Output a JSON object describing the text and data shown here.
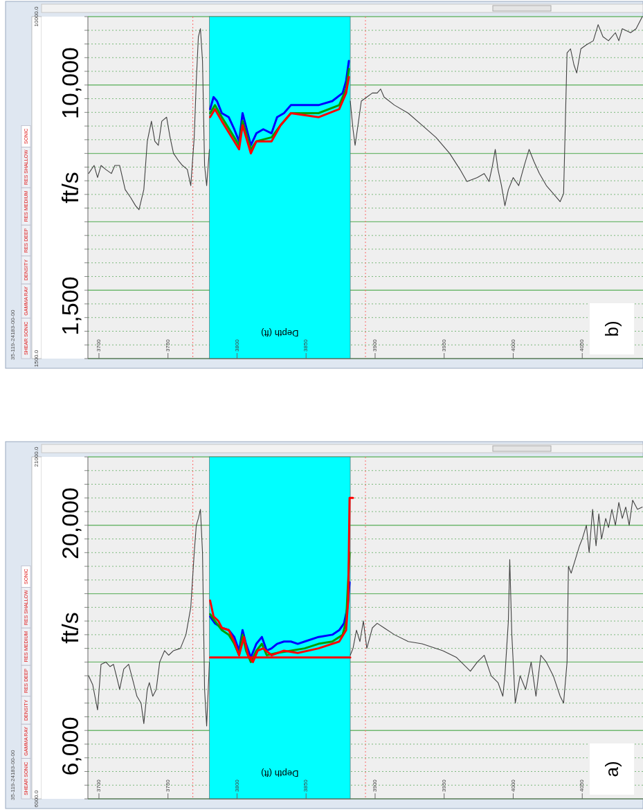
{
  "chart_data": [
    {
      "type": "line",
      "title": "b)",
      "xlabel": "Depth (ft)",
      "ylabel": "ft/s",
      "annotations": [
        "10,000",
        "1,500",
        "35-119-24183-00-00",
        "SHEAR SONIC",
        "GAMMA RAY",
        "DENSITY",
        "RES DEEP",
        "RES MEDIUM",
        "RES SHALLOW",
        "SONIC"
      ],
      "xlim": [
        3692,
        4094
      ],
      "ylim": [
        1500,
        10000
      ],
      "xticks": [
        3700,
        3750,
        3800,
        3850,
        3900,
        3950,
        4000,
        4050
      ],
      "yticks": [
        {
          "value": 1500,
          "label": "1500.0"
        },
        {
          "value": 1840,
          "label": null
        },
        {
          "value": 2180,
          "label": null
        },
        {
          "value": 2520,
          "label": null
        },
        {
          "value": 2860,
          "label": null
        },
        {
          "value": 3200,
          "label": null
        },
        {
          "value": 3540,
          "label": null
        },
        {
          "value": 3880,
          "label": null
        },
        {
          "value": 4220,
          "label": null
        },
        {
          "value": 4560,
          "label": null
        },
        {
          "value": 4900,
          "label": null
        },
        {
          "value": 5240,
          "label": null
        },
        {
          "value": 5580,
          "label": null
        },
        {
          "value": 5920,
          "label": null
        },
        {
          "value": 6260,
          "label": null
        },
        {
          "value": 6600,
          "label": null
        },
        {
          "value": 6940,
          "label": null
        },
        {
          "value": 7280,
          "label": null
        },
        {
          "value": 7620,
          "label": null
        },
        {
          "value": 7960,
          "label": null
        },
        {
          "value": 8300,
          "label": null
        },
        {
          "value": 8640,
          "label": null
        },
        {
          "value": 8980,
          "label": null
        },
        {
          "value": 9320,
          "label": null
        },
        {
          "value": 9660,
          "label": null
        },
        {
          "value": 10000,
          "label": "10000.0"
        }
      ],
      "grid": "y",
      "bands": [
        {
          "axis": "x",
          "from": 3780,
          "to": 3882,
          "color": "#00ffff"
        }
      ],
      "ref_lines": [
        {
          "axis": "x",
          "value": 3768,
          "color": "#ff6666",
          "line_style": "dotted"
        },
        {
          "axis": "x",
          "value": 3893,
          "color": "#ff6666",
          "line_style": "dotted"
        }
      ],
      "series": [
        {
          "color": "#404040",
          "x": [
            3692.5,
            3696.5,
            3699,
            3701.5,
            3705,
            3709,
            3711.5,
            3715,
            3719,
            3723,
            3726.5,
            3729,
            3732.5,
            3735,
            3738,
            3740.5,
            3743,
            3745.5,
            3749,
            3751.5,
            3754,
            3758,
            3760.5,
            3764,
            3766.5,
            3769,
            3770.5,
            3772,
            3773.5,
            3775,
            3776.5,
            3778,
            3780
          ],
          "values": [
            6100,
            6300,
            6000,
            6300,
            6200,
            6100,
            6300,
            6300,
            5700,
            5500,
            5300,
            5200,
            5700,
            6900,
            7400,
            6900,
            6800,
            7400,
            7500,
            7000,
            6600,
            6400,
            6300,
            6200,
            5800,
            7000,
            8400,
            9500,
            9700,
            8900,
            6300,
            5800,
            6700
          ]
        },
        {
          "color": "#404040",
          "x": [
            3882,
            3884,
            3885.5,
            3888,
            3890,
            3894,
            3898,
            3901.5,
            3904,
            3906.5,
            3914,
            3924,
            3934,
            3944,
            3954,
            3961.5,
            3966.5,
            3974,
            3979,
            3982.5,
            3985,
            3987,
            3989,
            3991.5,
            3994,
            3996.5,
            4000,
            4004,
            4008,
            4011.5,
            4015,
            4019,
            4024,
            4029,
            4034,
            4036.5,
            4039,
            4041.5,
            4044,
            4046,
            4049,
            4053,
            4058,
            4061.5,
            4065,
            4069,
            4074,
            4076.5,
            4079,
            4085,
            4089,
            4093.5
          ],
          "values": [
            7900,
            7200,
            6800,
            7400,
            7900,
            8000,
            8100,
            8100,
            8200,
            8000,
            7800,
            7600,
            7300,
            7000,
            6600,
            6200,
            5900,
            6000,
            6100,
            5900,
            6300,
            6700,
            6200,
            5800,
            5300,
            5700,
            6000,
            5800,
            6300,
            6700,
            6400,
            6100,
            5800,
            5600,
            5400,
            5600,
            9100,
            9200,
            8800,
            8600,
            9200,
            9300,
            9400,
            9800,
            9500,
            9400,
            9600,
            9400,
            9700,
            9600,
            9700,
            10000
          ]
        },
        {
          "color": "#0000ff",
          "x": [
            3780.5,
            3783,
            3785.5,
            3789,
            3794,
            3798,
            3801.5,
            3804,
            3807,
            3810,
            3814,
            3819,
            3825,
            3829,
            3834,
            3839,
            3849,
            3859,
            3869,
            3876.5,
            3879,
            3881
          ],
          "values": [
            7700,
            8000,
            7900,
            7600,
            7500,
            7200,
            6900,
            7600,
            7200,
            6800,
            7100,
            7200,
            7100,
            7500,
            7600,
            7800,
            7800,
            7800,
            7900,
            8100,
            8400,
            8900
          ]
        },
        {
          "color": "#00a000",
          "x": [
            3780.5,
            3784,
            3789,
            3798,
            3801.5,
            3804,
            3810,
            3814,
            3825,
            3831.5,
            3839,
            3859,
            3874,
            3879,
            3881
          ],
          "values": [
            7600,
            7800,
            7500,
            7000,
            6800,
            7400,
            6700,
            6900,
            7000,
            7300,
            7600,
            7600,
            7800,
            8200,
            8700
          ]
        },
        {
          "color": "#ff0000",
          "x": [
            3780.5,
            3784,
            3789,
            3798,
            3801.5,
            3804,
            3810,
            3814,
            3825,
            3831.5,
            3839,
            3859,
            3874,
            3879,
            3881
          ],
          "values": [
            7500,
            7700,
            7400,
            6900,
            6700,
            7300,
            6600,
            6900,
            6900,
            7300,
            7600,
            7500,
            7700,
            8100,
            8500
          ]
        }
      ]
    },
    {
      "type": "line",
      "title": "a)",
      "xlabel": "Depth (ft)",
      "ylabel": "ft/s",
      "annotations": [
        "20,000",
        "6,000",
        "35-119-24183-00-00",
        "SHEAR SONIC",
        "GAMMA RAY",
        "DENSITY",
        "RES DEEP",
        "RES MEDIUM",
        "RES SHALLOW",
        "SONIC"
      ],
      "xlim": [
        3692,
        4094
      ],
      "ylim": [
        6000,
        21000
      ],
      "xticks": [
        3700,
        3750,
        3800,
        3850,
        3900,
        3950,
        4000,
        4050
      ],
      "yticks": [
        {
          "value": 6000,
          "label": "6000.0"
        },
        {
          "value": 6600,
          "label": null
        },
        {
          "value": 7200,
          "label": null
        },
        {
          "value": 7800,
          "label": null
        },
        {
          "value": 8400,
          "label": null
        },
        {
          "value": 9000,
          "label": null
        },
        {
          "value": 9600,
          "label": null
        },
        {
          "value": 10200,
          "label": null
        },
        {
          "value": 10800,
          "label": null
        },
        {
          "value": 11400,
          "label": null
        },
        {
          "value": 12000,
          "label": null
        },
        {
          "value": 12600,
          "label": null
        },
        {
          "value": 13200,
          "label": null
        },
        {
          "value": 13800,
          "label": null
        },
        {
          "value": 14400,
          "label": null
        },
        {
          "value": 15000,
          "label": null
        },
        {
          "value": 15600,
          "label": null
        },
        {
          "value": 16200,
          "label": null
        },
        {
          "value": 16800,
          "label": null
        },
        {
          "value": 17400,
          "label": null
        },
        {
          "value": 18000,
          "label": null
        },
        {
          "value": 18600,
          "label": null
        },
        {
          "value": 19200,
          "label": null
        },
        {
          "value": 19800,
          "label": null
        },
        {
          "value": 20400,
          "label": null
        },
        {
          "value": 21000,
          "label": "21000.0"
        }
      ],
      "grid": "y",
      "bands": [
        {
          "axis": "x",
          "from": 3780,
          "to": 3882,
          "color": "#00ffff"
        }
      ],
      "ref_lines": [
        {
          "axis": "x",
          "value": 3768,
          "color": "#ff6666",
          "line_style": "dotted"
        },
        {
          "axis": "x",
          "value": 3893,
          "color": "#ff6666",
          "line_style": "dotted"
        }
      ],
      "series": [
        {
          "color": "#404040",
          "x": [
            3692.5,
            3695.5,
            3699,
            3701.5,
            3705,
            3708,
            3710.5,
            3713,
            3715,
            3718,
            3721.5,
            3725,
            3727.5,
            3730.5,
            3732.5,
            3735,
            3736.5,
            3739,
            3741.5,
            3744,
            3747.5,
            3750.5,
            3754,
            3759,
            3763,
            3766.5,
            3769,
            3770.5,
            3772,
            3773.5,
            3775,
            3776.5,
            3778,
            3780
          ],
          "values": [
            11400,
            11000,
            9900,
            11900,
            12000,
            11800,
            11900,
            11300,
            10800,
            11700,
            11900,
            11100,
            10500,
            10200,
            9300,
            10800,
            11100,
            10500,
            10800,
            12000,
            12500,
            12300,
            12500,
            12600,
            13200,
            14400,
            16800,
            18000,
            18300,
            18700,
            16800,
            10800,
            9200,
            12000
          ]
        },
        {
          "color": "#404040",
          "x": [
            3882,
            3884,
            3886.5,
            3889,
            3891.5,
            3894,
            3898,
            3901.5,
            3906.5,
            3914,
            3924,
            3934,
            3949,
            3959,
            3969,
            3974,
            3979,
            3984,
            3989,
            3992.5,
            3994,
            3996.5,
            3997.5,
            3999,
            4001.5,
            4005,
            4009,
            4013,
            4016.5,
            4020,
            4024,
            4029,
            4034,
            4036.5,
            4039,
            4040,
            4042,
            4045,
            4048,
            4050,
            4053,
            4055,
            4057.5,
            4060,
            4062,
            4064,
            4067,
            4069,
            4071.5,
            4074,
            4076.5,
            4079,
            4081.5,
            4084,
            4086.5,
            4090,
            4093.5
          ],
          "values": [
            12300,
            12600,
            13400,
            12900,
            13800,
            12600,
            13500,
            13700,
            13500,
            13200,
            12900,
            12800,
            12500,
            12200,
            11600,
            12000,
            12300,
            11400,
            11100,
            10500,
            11400,
            13800,
            16500,
            13200,
            10200,
            11400,
            10800,
            12000,
            10500,
            12300,
            12000,
            11400,
            10500,
            10200,
            12000,
            16200,
            15900,
            16500,
            17100,
            17400,
            18000,
            16800,
            18700,
            17100,
            18500,
            17400,
            18300,
            17900,
            18700,
            18000,
            19000,
            18300,
            18800,
            18000,
            19100,
            18700,
            18800
          ]
        },
        {
          "color": "#0000ff",
          "x": [
            3780.5,
            3784,
            3789,
            3794,
            3798,
            3801.5,
            3804,
            3806.5,
            3810,
            3814,
            3818,
            3821.5,
            3825,
            3829,
            3834,
            3839,
            3844,
            3849,
            3859,
            3869,
            3874,
            3877.5,
            3880,
            3881.5
          ],
          "values": [
            14000,
            13700,
            13500,
            13400,
            13100,
            12500,
            13400,
            12800,
            12200,
            12800,
            13100,
            12500,
            12600,
            12800,
            12900,
            12900,
            12800,
            12900,
            13100,
            13200,
            13400,
            13700,
            14400,
            15500
          ]
        },
        {
          "color": "#00a000",
          "x": [
            3780.5,
            3784,
            3789,
            3794,
            3798,
            3801.5,
            3804,
            3806.5,
            3810,
            3814,
            3818,
            3821.5,
            3829,
            3839,
            3849,
            3859,
            3869,
            3876.5,
            3879,
            3881.5
          ],
          "values": [
            14100,
            13800,
            13400,
            13200,
            12800,
            12300,
            13200,
            12500,
            12000,
            12500,
            12800,
            12300,
            12400,
            12500,
            12600,
            12800,
            12900,
            13200,
            13800,
            16800
          ]
        },
        {
          "color": "#ff0000",
          "x": [
            3780.5,
            3783,
            3786.5,
            3789,
            3794,
            3798,
            3801.5,
            3805,
            3808,
            3811.5,
            3815,
            3819,
            3825,
            3834,
            3844,
            3859,
            3874,
            3879,
            3880.5,
            3881.5,
            3884
          ],
          "values": [
            14700,
            14000,
            13800,
            13500,
            13400,
            12900,
            12300,
            13100,
            12300,
            12000,
            12500,
            12600,
            12300,
            12500,
            12400,
            12600,
            12900,
            13400,
            14700,
            19200,
            19200
          ]
        },
        {
          "color": "#ff0000",
          "x": [
            3780.5,
            3882
          ],
          "values": [
            12200,
            12200
          ]
        }
      ]
    }
  ]
}
